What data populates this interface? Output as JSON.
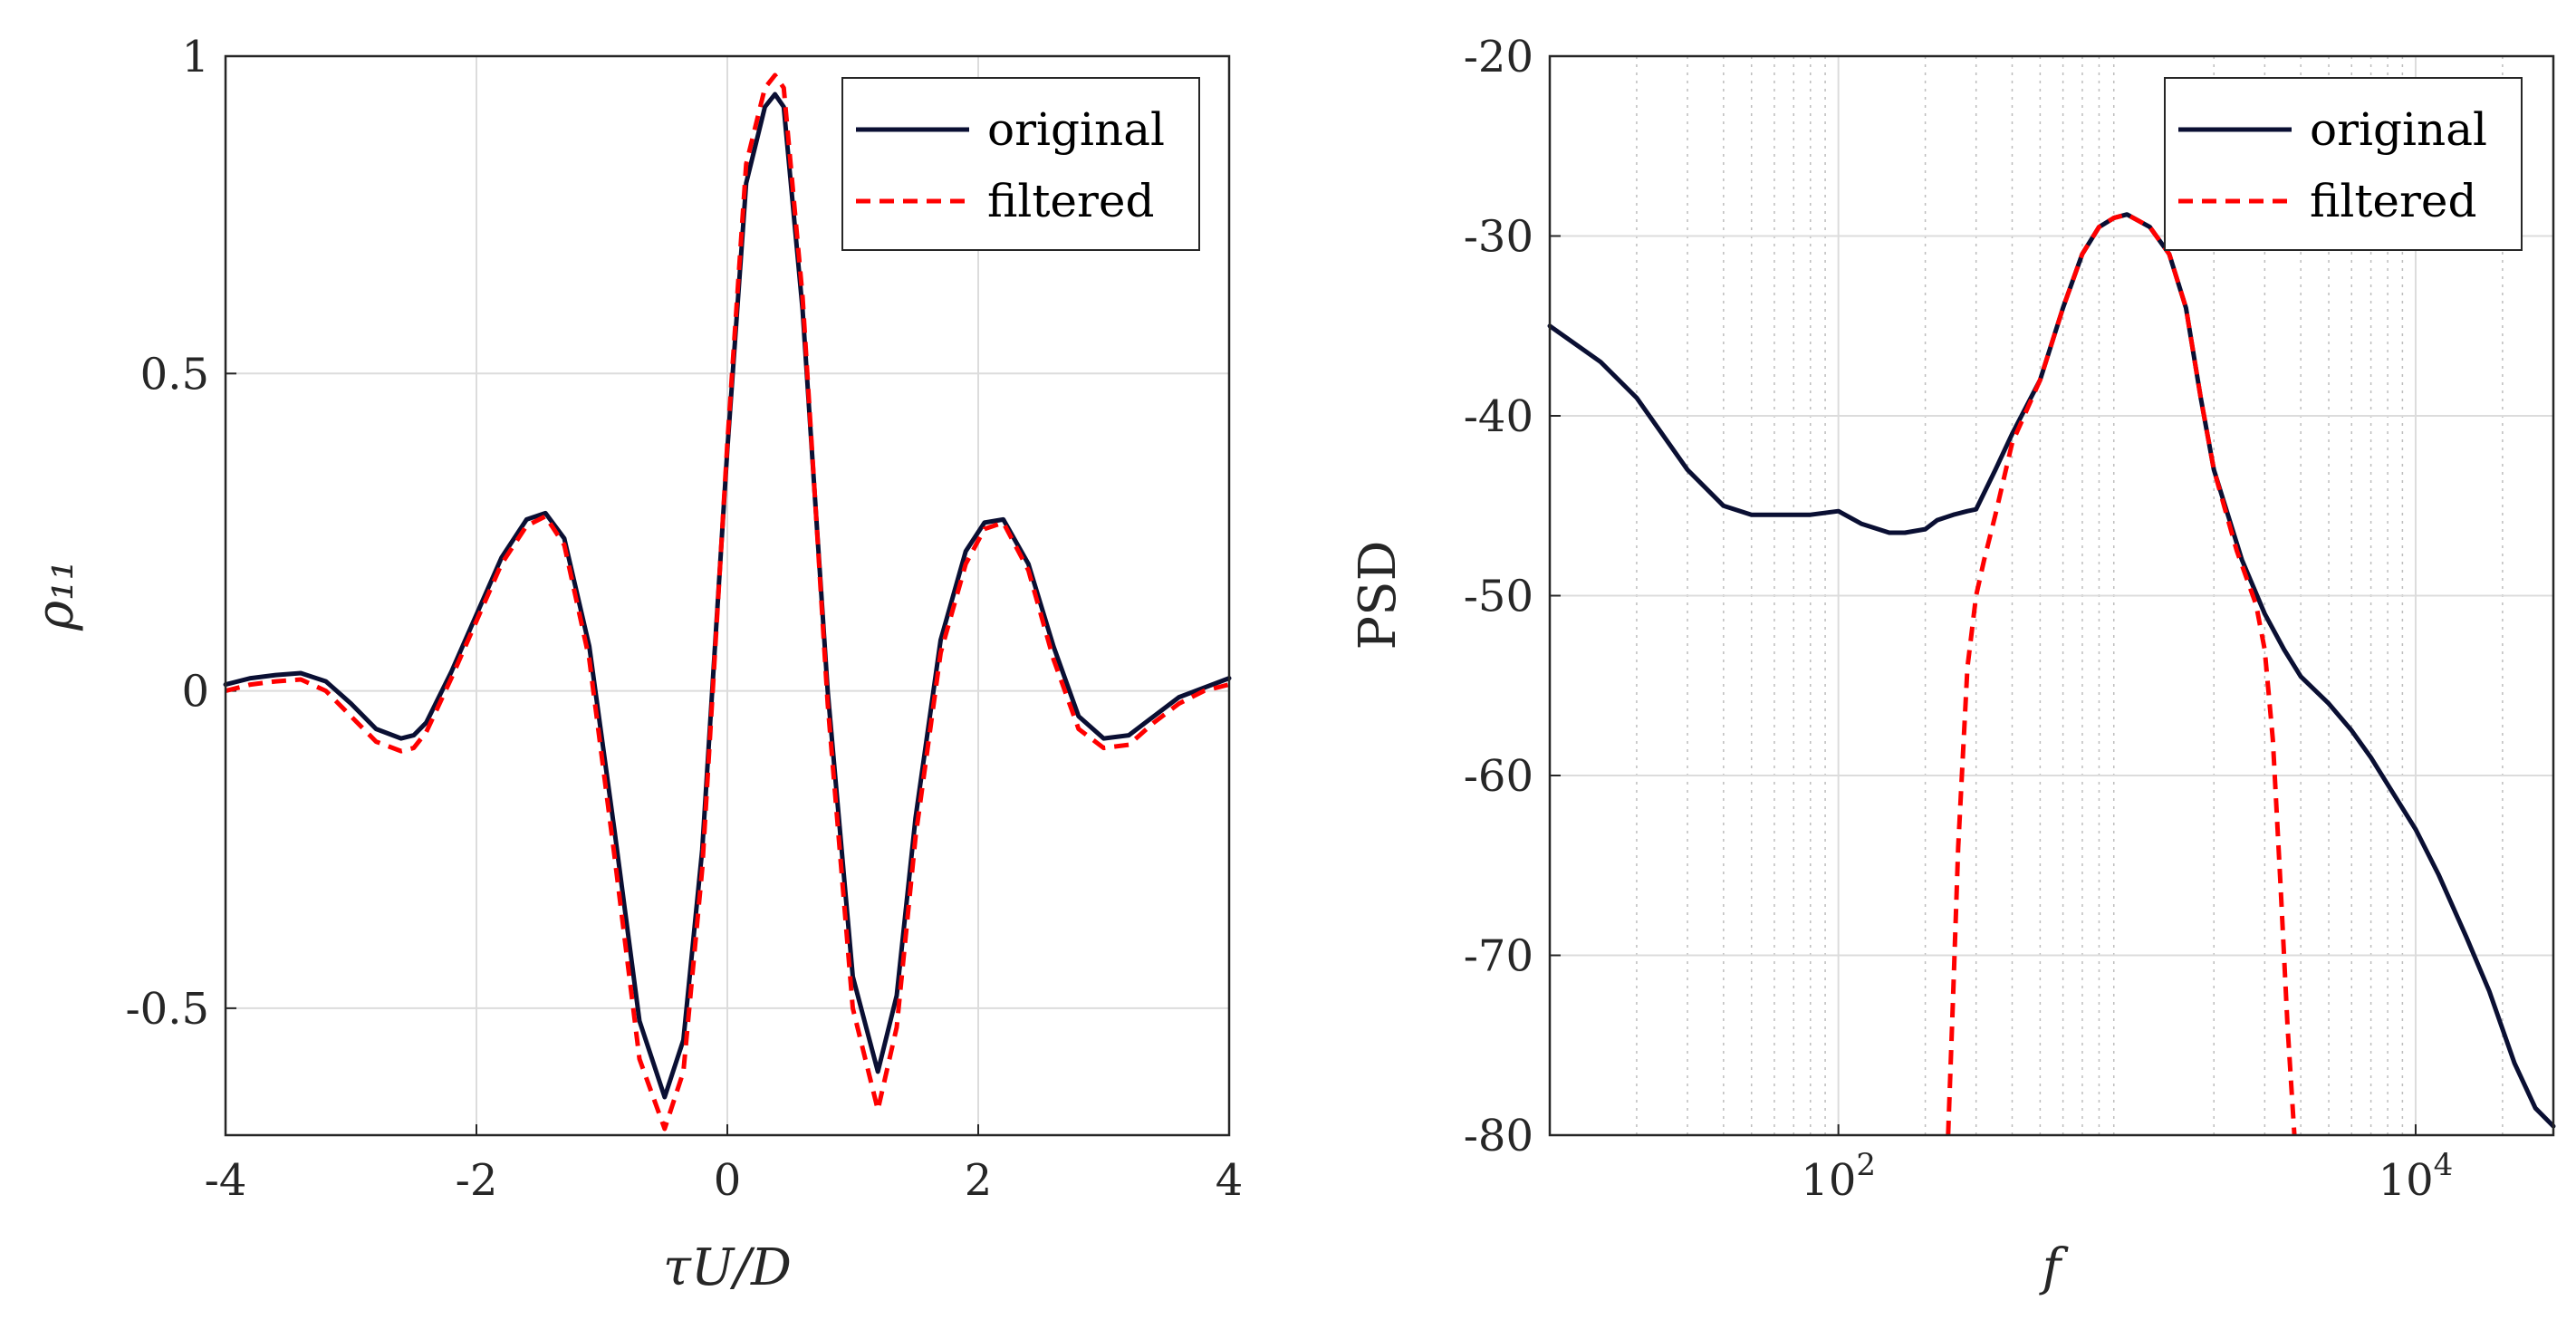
{
  "chart_data": [
    {
      "type": "line",
      "xlabel": "τU/D",
      "ylabel": "ρ₁₁",
      "xlim": [
        -4,
        4
      ],
      "ylim": [
        -0.7,
        1
      ],
      "xticks": [
        -4,
        -2,
        0,
        2,
        4
      ],
      "xtick_labels": [
        "-4",
        "-2",
        "0",
        "2",
        "4"
      ],
      "yticks": [
        -0.5,
        0,
        0.5,
        1
      ],
      "ytick_labels": [
        "-0.5",
        "0",
        "0.5",
        "1"
      ],
      "grid": true,
      "legend_position": "top-right",
      "series": [
        {
          "name": "original",
          "color": "#0a0f33",
          "style": "solid",
          "x": [
            -4,
            -3.8,
            -3.6,
            -3.4,
            -3.2,
            -3.0,
            -2.8,
            -2.6,
            -2.5,
            -2.4,
            -2.2,
            -2.0,
            -1.8,
            -1.6,
            -1.45,
            -1.3,
            -1.1,
            -0.9,
            -0.7,
            -0.5,
            -0.35,
            -0.2,
            0.0,
            0.15,
            0.3,
            0.38,
            0.45,
            0.6,
            0.8,
            1.0,
            1.2,
            1.35,
            1.5,
            1.7,
            1.9,
            2.05,
            2.2,
            2.4,
            2.6,
            2.8,
            3.0,
            3.2,
            3.4,
            3.6,
            3.8,
            4.0
          ],
          "y": [
            0.01,
            0.02,
            0.025,
            0.028,
            0.015,
            -0.02,
            -0.06,
            -0.075,
            -0.07,
            -0.05,
            0.03,
            0.12,
            0.21,
            0.27,
            0.28,
            0.24,
            0.07,
            -0.22,
            -0.52,
            -0.64,
            -0.55,
            -0.25,
            0.38,
            0.8,
            0.92,
            0.94,
            0.92,
            0.6,
            0.0,
            -0.45,
            -0.6,
            -0.48,
            -0.2,
            0.08,
            0.22,
            0.265,
            0.27,
            0.2,
            0.07,
            -0.04,
            -0.075,
            -0.07,
            -0.04,
            -0.01,
            0.005,
            0.02
          ]
        },
        {
          "name": "filtered",
          "color": "#ff0000",
          "style": "dashed",
          "x": [
            -4,
            -3.8,
            -3.6,
            -3.4,
            -3.2,
            -3.0,
            -2.8,
            -2.6,
            -2.5,
            -2.4,
            -2.2,
            -2.0,
            -1.8,
            -1.6,
            -1.45,
            -1.3,
            -1.1,
            -0.9,
            -0.7,
            -0.5,
            -0.35,
            -0.2,
            0.0,
            0.15,
            0.3,
            0.38,
            0.45,
            0.6,
            0.8,
            1.0,
            1.2,
            1.35,
            1.5,
            1.7,
            1.9,
            2.05,
            2.2,
            2.4,
            2.6,
            2.8,
            3.0,
            3.2,
            3.4,
            3.6,
            3.8,
            4.0
          ],
          "y": [
            0.0,
            0.01,
            0.015,
            0.018,
            0.0,
            -0.04,
            -0.08,
            -0.095,
            -0.09,
            -0.065,
            0.02,
            0.11,
            0.2,
            0.26,
            0.275,
            0.23,
            0.05,
            -0.26,
            -0.58,
            -0.69,
            -0.6,
            -0.28,
            0.39,
            0.83,
            0.95,
            0.97,
            0.95,
            0.62,
            -0.02,
            -0.5,
            -0.66,
            -0.53,
            -0.23,
            0.06,
            0.2,
            0.255,
            0.265,
            0.19,
            0.05,
            -0.06,
            -0.09,
            -0.085,
            -0.05,
            -0.02,
            0.0,
            0.01
          ]
        }
      ]
    },
    {
      "type": "line",
      "xscale": "log",
      "xlabel": "f",
      "ylabel": "PSD",
      "xlim": [
        10,
        30000
      ],
      "ylim": [
        -80,
        -20
      ],
      "xticks": [
        100,
        10000
      ],
      "xtick_labels": [
        "10",
        "10"
      ],
      "xtick_exponents": [
        "2",
        "4"
      ],
      "yticks": [
        -80,
        -70,
        -60,
        -50,
        -40,
        -30,
        -20
      ],
      "ytick_labels": [
        "-80",
        "-70",
        "-60",
        "-50",
        "-40",
        "-30",
        "-20"
      ],
      "grid": true,
      "minor_grid": true,
      "legend_position": "top-right",
      "series": [
        {
          "name": "original",
          "color": "#0a0f33",
          "style": "solid",
          "x": [
            10,
            15,
            20,
            30,
            40,
            50,
            60,
            80,
            100,
            120,
            150,
            170,
            200,
            220,
            250,
            280,
            300,
            350,
            400,
            500,
            600,
            700,
            800,
            900,
            1000,
            1200,
            1400,
            1600,
            1800,
            2000,
            2500,
            3000,
            3500,
            4000,
            5000,
            6000,
            7000,
            8000,
            10000,
            12000,
            15000,
            18000,
            22000,
            26000,
            30000
          ],
          "y": [
            -35,
            -37,
            -39,
            -43,
            -45,
            -45.5,
            -45.5,
            -45.5,
            -45.3,
            -46,
            -46.5,
            -46.5,
            -46.3,
            -45.8,
            -45.5,
            -45.3,
            -45.2,
            -43,
            -41,
            -38,
            -34,
            -31,
            -29.5,
            -29,
            -28.8,
            -29.5,
            -31,
            -34,
            -39,
            -43,
            -48,
            -51,
            -53,
            -54.5,
            -56,
            -57.5,
            -59,
            -60.5,
            -63,
            -65.5,
            -69,
            -72,
            -76,
            -78.5,
            -79.5
          ]
        },
        {
          "name": "filtered",
          "color": "#ff0000",
          "style": "dashed",
          "x": [
            240,
            250,
            260,
            280,
            300,
            320,
            350,
            400,
            500,
            600,
            700,
            800,
            900,
            1000,
            1200,
            1400,
            1600,
            1800,
            2000,
            2400,
            2800,
            3000,
            3200,
            3400,
            3600,
            3800
          ],
          "y": [
            -80,
            -72,
            -64,
            -54,
            -50,
            -48,
            -45.5,
            -41.5,
            -38,
            -34,
            -31,
            -29.5,
            -29,
            -28.8,
            -29.5,
            -31,
            -34,
            -39,
            -43,
            -47.5,
            -50.5,
            -53,
            -58,
            -66,
            -74,
            -80
          ]
        }
      ]
    }
  ]
}
